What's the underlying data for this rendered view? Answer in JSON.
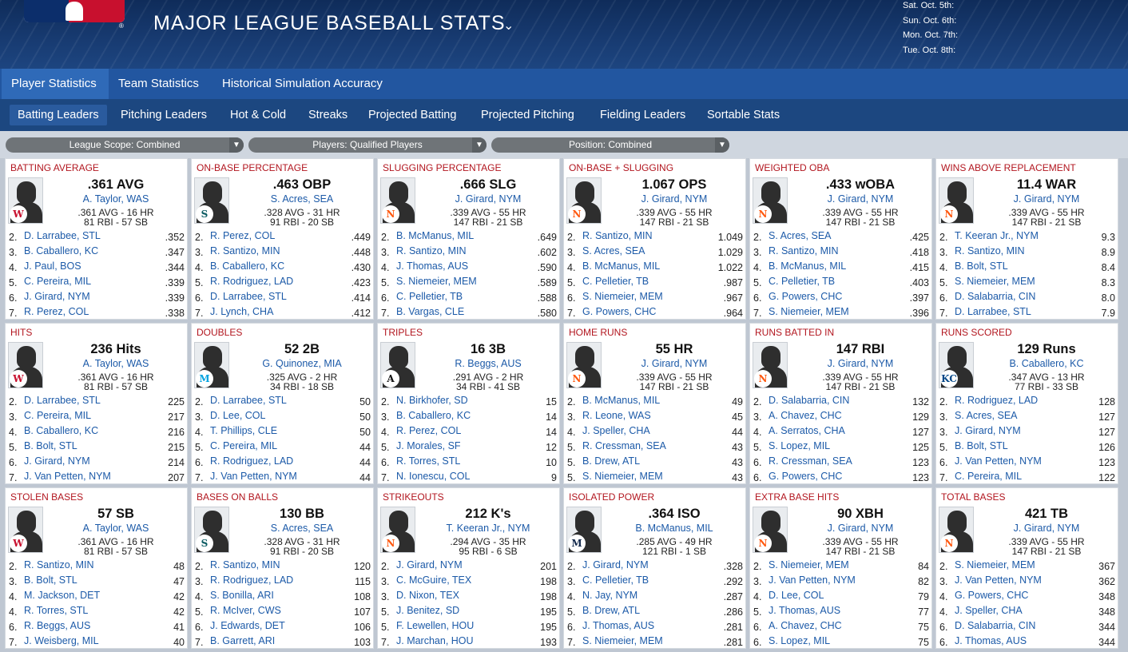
{
  "header": {
    "title": "MAJOR LEAGUE BASEBALL STATS",
    "logo_registered": "®",
    "chevron": "⌄",
    "dates": [
      "Sat. Oct. 5th:",
      "Sun. Oct. 6th:",
      "Mon. Oct. 7th:",
      "Tue. Oct. 8th:"
    ]
  },
  "main_tabs": [
    {
      "label": "Player Statistics",
      "active": true
    },
    {
      "label": "Team Statistics",
      "active": false
    },
    {
      "label": "Historical Simulation Accuracy",
      "active": false
    }
  ],
  "sub_tabs": [
    {
      "label": "Batting Leaders",
      "active": true
    },
    {
      "label": "Pitching Leaders",
      "active": false
    },
    {
      "label": "Hot & Cold",
      "active": false
    },
    {
      "label": "Streaks",
      "active": false
    },
    {
      "label": "Projected Batting",
      "active": false
    },
    {
      "label": "Projected Pitching",
      "active": false
    },
    {
      "label": "Fielding Leaders",
      "active": false
    },
    {
      "label": "Sortable Stats",
      "active": false
    }
  ],
  "filters": [
    {
      "label": "League Scope: Combined"
    },
    {
      "label": "Players: Qualified Players"
    },
    {
      "label": "Position: Combined"
    }
  ],
  "colors": {
    "accent_red": "#b2161f",
    "link_blue": "#1c5aa8",
    "nav_blue": "#2256a0"
  },
  "cards": [
    {
      "title": "BATTING AVERAGE",
      "leader": {
        "value": ".361 AVG",
        "name": "A. Taylor, WAS",
        "line1": ".361 AVG - 16 HR",
        "line2": "81 RBI - 57 SB",
        "team": "W",
        "team_color": "#c8102e"
      },
      "rows": [
        {
          "rank": "2.",
          "name": "D. Larrabee, STL",
          "value": ".352"
        },
        {
          "rank": "3.",
          "name": "B. Caballero, KC",
          "value": ".347"
        },
        {
          "rank": "4.",
          "name": "J. Paul, BOS",
          "value": ".344"
        },
        {
          "rank": "5.",
          "name": "C. Pereira, MIL",
          "value": ".339"
        },
        {
          "rank": "6.",
          "name": "J. Girard, NYM",
          "value": ".339"
        },
        {
          "rank": "7.",
          "name": "R. Perez, COL",
          "value": ".338"
        }
      ]
    },
    {
      "title": "ON-BASE PERCENTAGE",
      "leader": {
        "value": ".463 OBP",
        "name": "S. Acres, SEA",
        "line1": ".328 AVG - 31 HR",
        "line2": "91 RBI - 20 SB",
        "team": "S",
        "team_color": "#0c5c63"
      },
      "rows": [
        {
          "rank": "2.",
          "name": "R. Perez, COL",
          "value": ".449"
        },
        {
          "rank": "3.",
          "name": "R. Santizo, MIN",
          "value": ".448"
        },
        {
          "rank": "4.",
          "name": "B. Caballero, KC",
          "value": ".430"
        },
        {
          "rank": "5.",
          "name": "R. Rodriguez, LAD",
          "value": ".423"
        },
        {
          "rank": "6.",
          "name": "D. Larrabee, STL",
          "value": ".414"
        },
        {
          "rank": "7.",
          "name": "J. Lynch, CHA",
          "value": ".412"
        }
      ]
    },
    {
      "title": "SLUGGING PERCENTAGE",
      "leader": {
        "value": ".666 SLG",
        "name": "J. Girard, NYM",
        "line1": ".339 AVG - 55 HR",
        "line2": "147 RBI - 21 SB",
        "team": "N",
        "team_color": "#ff5910"
      },
      "rows": [
        {
          "rank": "2.",
          "name": "B. McManus, MIL",
          "value": ".649"
        },
        {
          "rank": "3.",
          "name": "R. Santizo, MIN",
          "value": ".602"
        },
        {
          "rank": "4.",
          "name": "J. Thomas, AUS",
          "value": ".590"
        },
        {
          "rank": "5.",
          "name": "S. Niemeier, MEM",
          "value": ".589"
        },
        {
          "rank": "6.",
          "name": "C. Pelletier, TB",
          "value": ".588"
        },
        {
          "rank": "7.",
          "name": "B. Vargas, CLE",
          "value": ".580"
        }
      ]
    },
    {
      "title": "ON-BASE + SLUGGING",
      "leader": {
        "value": "1.067 OPS",
        "name": "J. Girard, NYM",
        "line1": ".339 AVG - 55 HR",
        "line2": "147 RBI - 21 SB",
        "team": "N",
        "team_color": "#ff5910"
      },
      "rows": [
        {
          "rank": "2.",
          "name": "R. Santizo, MIN",
          "value": "1.049"
        },
        {
          "rank": "3.",
          "name": "S. Acres, SEA",
          "value": "1.029"
        },
        {
          "rank": "4.",
          "name": "B. McManus, MIL",
          "value": "1.022"
        },
        {
          "rank": "5.",
          "name": "C. Pelletier, TB",
          "value": ".987"
        },
        {
          "rank": "6.",
          "name": "S. Niemeier, MEM",
          "value": ".967"
        },
        {
          "rank": "7.",
          "name": "G. Powers, CHC",
          "value": ".964"
        }
      ]
    },
    {
      "title": "WEIGHTED OBA",
      "leader": {
        "value": ".433 wOBA",
        "name": "J. Girard, NYM",
        "line1": ".339 AVG - 55 HR",
        "line2": "147 RBI - 21 SB",
        "team": "N",
        "team_color": "#ff5910"
      },
      "rows": [
        {
          "rank": "2.",
          "name": "S. Acres, SEA",
          "value": ".425"
        },
        {
          "rank": "3.",
          "name": "R. Santizo, MIN",
          "value": ".418"
        },
        {
          "rank": "4.",
          "name": "B. McManus, MIL",
          "value": ".415"
        },
        {
          "rank": "5.",
          "name": "C. Pelletier, TB",
          "value": ".403"
        },
        {
          "rank": "6.",
          "name": "G. Powers, CHC",
          "value": ".397"
        },
        {
          "rank": "7.",
          "name": "S. Niemeier, MEM",
          "value": ".396"
        }
      ]
    },
    {
      "title": "WINS ABOVE REPLACEMENT",
      "leader": {
        "value": "11.4 WAR",
        "name": "J. Girard, NYM",
        "line1": ".339 AVG - 55 HR",
        "line2": "147 RBI - 21 SB",
        "team": "N",
        "team_color": "#ff5910"
      },
      "rows": [
        {
          "rank": "2.",
          "name": "T. Keeran Jr., NYM",
          "value": "9.3"
        },
        {
          "rank": "3.",
          "name": "R. Santizo, MIN",
          "value": "8.9"
        },
        {
          "rank": "4.",
          "name": "B. Bolt, STL",
          "value": "8.4"
        },
        {
          "rank": "5.",
          "name": "S. Niemeier, MEM",
          "value": "8.3"
        },
        {
          "rank": "6.",
          "name": "D. Salabarria, CIN",
          "value": "8.0"
        },
        {
          "rank": "7.",
          "name": "D. Larrabee, STL",
          "value": "7.9"
        }
      ]
    },
    {
      "title": "HITS",
      "leader": {
        "value": "236 Hits",
        "name": "A. Taylor, WAS",
        "line1": ".361 AVG - 16 HR",
        "line2": "81 RBI - 57 SB",
        "team": "W",
        "team_color": "#c8102e"
      },
      "rows": [
        {
          "rank": "2.",
          "name": "D. Larrabee, STL",
          "value": "225"
        },
        {
          "rank": "3.",
          "name": "C. Pereira, MIL",
          "value": "217"
        },
        {
          "rank": "4.",
          "name": "B. Caballero, KC",
          "value": "216"
        },
        {
          "rank": "5.",
          "name": "B. Bolt, STL",
          "value": "215"
        },
        {
          "rank": "6.",
          "name": "J. Girard, NYM",
          "value": "214"
        },
        {
          "rank": "7.",
          "name": "J. Van Petten, NYM",
          "value": "207"
        }
      ]
    },
    {
      "title": "DOUBLES",
      "leader": {
        "value": "52 2B",
        "name": "G. Quinonez, MIA",
        "line1": ".325 AVG - 2 HR",
        "line2": "34 RBI - 18 SB",
        "team": "M",
        "team_color": "#00a3e0"
      },
      "rows": [
        {
          "rank": "2.",
          "name": "D. Larrabee, STL",
          "value": "50"
        },
        {
          "rank": "3.",
          "name": "D. Lee, COL",
          "value": "50"
        },
        {
          "rank": "4.",
          "name": "T. Phillips, CLE",
          "value": "50"
        },
        {
          "rank": "5.",
          "name": "C. Pereira, MIL",
          "value": "44"
        },
        {
          "rank": "6.",
          "name": "R. Rodriguez, LAD",
          "value": "44"
        },
        {
          "rank": "7.",
          "name": "J. Van Petten, NYM",
          "value": "44"
        }
      ]
    },
    {
      "title": "TRIPLES",
      "leader": {
        "value": "16 3B",
        "name": "R. Beggs, AUS",
        "line1": ".291 AVG - 2 HR",
        "line2": "34 RBI - 41 SB",
        "team": "A",
        "team_color": "#111111"
      },
      "rows": [
        {
          "rank": "2.",
          "name": "N. Birkhofer, SD",
          "value": "15"
        },
        {
          "rank": "3.",
          "name": "B. Caballero, KC",
          "value": "14"
        },
        {
          "rank": "4.",
          "name": "R. Perez, COL",
          "value": "14"
        },
        {
          "rank": "5.",
          "name": "J. Morales, SF",
          "value": "12"
        },
        {
          "rank": "6.",
          "name": "R. Torres, STL",
          "value": "10"
        },
        {
          "rank": "7.",
          "name": "N. Ionescu, COL",
          "value": "9"
        }
      ]
    },
    {
      "title": "HOME RUNS",
      "leader": {
        "value": "55 HR",
        "name": "J. Girard, NYM",
        "line1": ".339 AVG - 55 HR",
        "line2": "147 RBI - 21 SB",
        "team": "N",
        "team_color": "#ff5910"
      },
      "rows": [
        {
          "rank": "2.",
          "name": "B. McManus, MIL",
          "value": "49"
        },
        {
          "rank": "3.",
          "name": "R. Leone, WAS",
          "value": "45"
        },
        {
          "rank": "4.",
          "name": "J. Speller, CHA",
          "value": "44"
        },
        {
          "rank": "5.",
          "name": "R. Cressman, SEA",
          "value": "43"
        },
        {
          "rank": "5.",
          "name": "B. Drew, ATL",
          "value": "43"
        },
        {
          "rank": "5.",
          "name": "S. Niemeier, MEM",
          "value": "43"
        }
      ]
    },
    {
      "title": "RUNS BATTED IN",
      "leader": {
        "value": "147 RBI",
        "name": "J. Girard, NYM",
        "line1": ".339 AVG - 55 HR",
        "line2": "147 RBI - 21 SB",
        "team": "N",
        "team_color": "#ff5910"
      },
      "rows": [
        {
          "rank": "2.",
          "name": "D. Salabarria, CIN",
          "value": "132"
        },
        {
          "rank": "3.",
          "name": "A. Chavez, CHC",
          "value": "129"
        },
        {
          "rank": "4.",
          "name": "A. Serratos, CHA",
          "value": "127"
        },
        {
          "rank": "5.",
          "name": "S. Lopez, MIL",
          "value": "125"
        },
        {
          "rank": "6.",
          "name": "R. Cressman, SEA",
          "value": "123"
        },
        {
          "rank": "6.",
          "name": "G. Powers, CHC",
          "value": "123"
        }
      ]
    },
    {
      "title": "RUNS SCORED",
      "leader": {
        "value": "129 Runs",
        "name": "B. Caballero, KC",
        "line1": ".347 AVG - 13 HR",
        "line2": "77 RBI - 33 SB",
        "team": "KC",
        "team_color": "#004687"
      },
      "rows": [
        {
          "rank": "2.",
          "name": "R. Rodriguez, LAD",
          "value": "128"
        },
        {
          "rank": "3.",
          "name": "S. Acres, SEA",
          "value": "127"
        },
        {
          "rank": "3.",
          "name": "J. Girard, NYM",
          "value": "127"
        },
        {
          "rank": "5.",
          "name": "B. Bolt, STL",
          "value": "126"
        },
        {
          "rank": "6.",
          "name": "J. Van Petten, NYM",
          "value": "123"
        },
        {
          "rank": "7.",
          "name": "C. Pereira, MIL",
          "value": "122"
        }
      ]
    },
    {
      "title": "STOLEN BASES",
      "leader": {
        "value": "57 SB",
        "name": "A. Taylor, WAS",
        "line1": ".361 AVG - 16 HR",
        "line2": "81 RBI - 57 SB",
        "team": "W",
        "team_color": "#c8102e"
      },
      "rows": [
        {
          "rank": "2.",
          "name": "R. Santizo, MIN",
          "value": "48"
        },
        {
          "rank": "3.",
          "name": "B. Bolt, STL",
          "value": "47"
        },
        {
          "rank": "4.",
          "name": "M. Jackson, DET",
          "value": "42"
        },
        {
          "rank": "4.",
          "name": "R. Torres, STL",
          "value": "42"
        },
        {
          "rank": "6.",
          "name": "R. Beggs, AUS",
          "value": "41"
        },
        {
          "rank": "7.",
          "name": "J. Weisberg, MIL",
          "value": "40"
        }
      ]
    },
    {
      "title": "BASES ON BALLS",
      "leader": {
        "value": "130 BB",
        "name": "S. Acres, SEA",
        "line1": ".328 AVG - 31 HR",
        "line2": "91 RBI - 20 SB",
        "team": "S",
        "team_color": "#0c5c63"
      },
      "rows": [
        {
          "rank": "2.",
          "name": "R. Santizo, MIN",
          "value": "120"
        },
        {
          "rank": "3.",
          "name": "R. Rodriguez, LAD",
          "value": "115"
        },
        {
          "rank": "4.",
          "name": "S. Bonilla, ARI",
          "value": "108"
        },
        {
          "rank": "5.",
          "name": "R. McIver, CWS",
          "value": "107"
        },
        {
          "rank": "6.",
          "name": "J. Edwards, DET",
          "value": "106"
        },
        {
          "rank": "7.",
          "name": "B. Garrett, ARI",
          "value": "103"
        }
      ]
    },
    {
      "title": "STRIKEOUTS",
      "leader": {
        "value": "212 K's",
        "name": "T. Keeran Jr., NYM",
        "line1": ".294 AVG - 35 HR",
        "line2": "95 RBI - 6 SB",
        "team": "N",
        "team_color": "#ff5910"
      },
      "rows": [
        {
          "rank": "2.",
          "name": "J. Girard, NYM",
          "value": "201"
        },
        {
          "rank": "3.",
          "name": "C. McGuire, TEX",
          "value": "198"
        },
        {
          "rank": "3.",
          "name": "D. Nixon, TEX",
          "value": "198"
        },
        {
          "rank": "5.",
          "name": "J. Benitez, SD",
          "value": "195"
        },
        {
          "rank": "5.",
          "name": "F. Lewellen, HOU",
          "value": "195"
        },
        {
          "rank": "7.",
          "name": "J. Marchan, HOU",
          "value": "193"
        }
      ]
    },
    {
      "title": "ISOLATED POWER",
      "leader": {
        "value": ".364 ISO",
        "name": "B. McManus, MIL",
        "line1": ".285 AVG - 49 HR",
        "line2": "121 RBI - 1 SB",
        "team": "M",
        "team_color": "#12284b"
      },
      "rows": [
        {
          "rank": "2.",
          "name": "J. Girard, NYM",
          "value": ".328"
        },
        {
          "rank": "3.",
          "name": "C. Pelletier, TB",
          "value": ".292"
        },
        {
          "rank": "4.",
          "name": "N. Jay, NYM",
          "value": ".287"
        },
        {
          "rank": "5.",
          "name": "B. Drew, ATL",
          "value": ".286"
        },
        {
          "rank": "6.",
          "name": "J. Thomas, AUS",
          "value": ".281"
        },
        {
          "rank": "7.",
          "name": "S. Niemeier, MEM",
          "value": ".281"
        }
      ]
    },
    {
      "title": "EXTRA BASE HITS",
      "leader": {
        "value": "90 XBH",
        "name": "J. Girard, NYM",
        "line1": ".339 AVG - 55 HR",
        "line2": "147 RBI - 21 SB",
        "team": "N",
        "team_color": "#ff5910"
      },
      "rows": [
        {
          "rank": "2.",
          "name": "S. Niemeier, MEM",
          "value": "84"
        },
        {
          "rank": "3.",
          "name": "J. Van Petten, NYM",
          "value": "82"
        },
        {
          "rank": "4.",
          "name": "D. Lee, COL",
          "value": "79"
        },
        {
          "rank": "5.",
          "name": "J. Thomas, AUS",
          "value": "77"
        },
        {
          "rank": "6.",
          "name": "A. Chavez, CHC",
          "value": "75"
        },
        {
          "rank": "6.",
          "name": "S. Lopez, MIL",
          "value": "75"
        }
      ]
    },
    {
      "title": "TOTAL BASES",
      "leader": {
        "value": "421 TB",
        "name": "J. Girard, NYM",
        "line1": ".339 AVG - 55 HR",
        "line2": "147 RBI - 21 SB",
        "team": "N",
        "team_color": "#ff5910"
      },
      "rows": [
        {
          "rank": "2.",
          "name": "S. Niemeier, MEM",
          "value": "367"
        },
        {
          "rank": "3.",
          "name": "J. Van Petten, NYM",
          "value": "362"
        },
        {
          "rank": "4.",
          "name": "G. Powers, CHC",
          "value": "348"
        },
        {
          "rank": "4.",
          "name": "J. Speller, CHA",
          "value": "348"
        },
        {
          "rank": "6.",
          "name": "D. Salabarria, CIN",
          "value": "344"
        },
        {
          "rank": "6.",
          "name": "J. Thomas, AUS",
          "value": "344"
        }
      ]
    }
  ]
}
